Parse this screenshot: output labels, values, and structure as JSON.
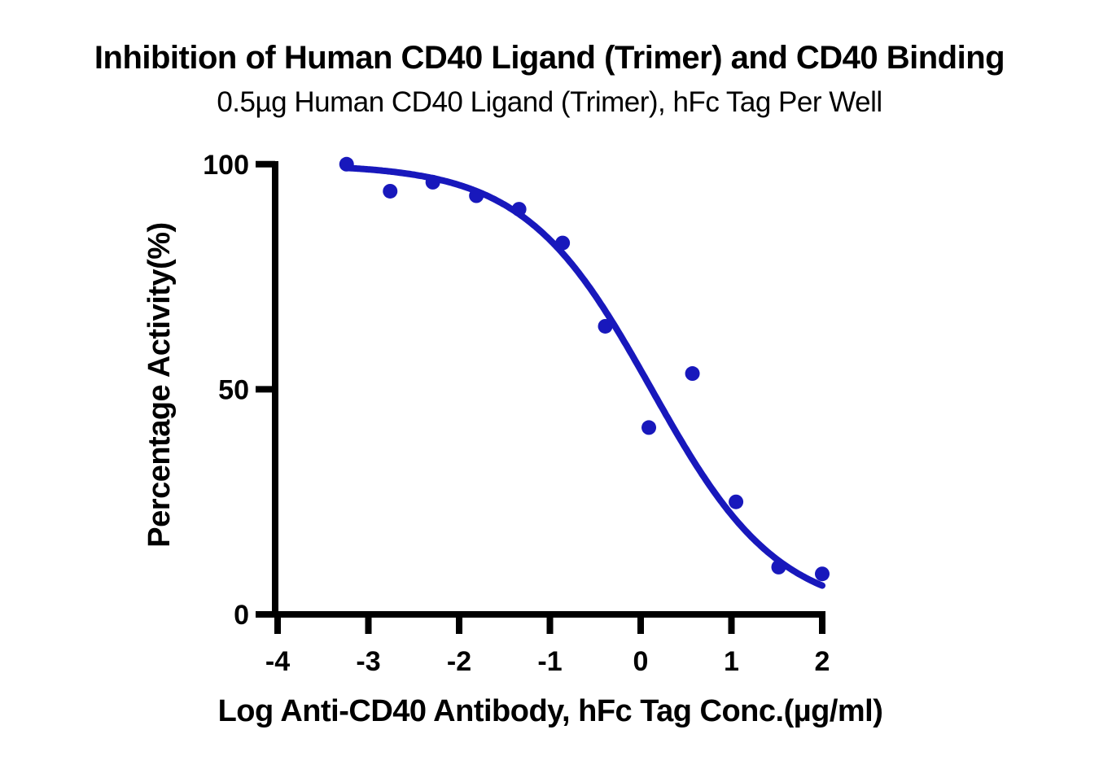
{
  "figure": {
    "title": "Inhibition of Human CD40 Ligand (Trimer) and CD40 Binding",
    "subtitle": "0.5µg Human CD40 Ligand (Trimer), hFc Tag Per Well"
  },
  "chart_data": {
    "type": "scatter",
    "title": "Inhibition of Human CD40 Ligand (Trimer) and CD40 Binding",
    "subtitle": "0.5µg Human CD40 Ligand (Trimer), hFc Tag Per Well",
    "xlabel": "Log Anti-CD40 Antibody, hFc Tag Conc.(µg/ml)",
    "ylabel": "Percentage Activity(%)",
    "xlim": [
      -4,
      2
    ],
    "ylim": [
      0,
      100
    ],
    "x_ticks": [
      -4,
      -3,
      -2,
      -1,
      0,
      1,
      2
    ],
    "y_ticks": [
      0,
      50,
      100
    ],
    "grid": false,
    "legend_position": "none",
    "marker_color": "#1818BC",
    "line_color": "#1818BC",
    "axis_color": "#000000",
    "series": [
      {
        "name": "Anti-CD40 Antibody",
        "x": [
          -3.24,
          -2.76,
          -2.29,
          -1.81,
          -1.34,
          -0.86,
          -0.39,
          0.09,
          0.57,
          1.05,
          1.52,
          2.0
        ],
        "y": [
          100,
          94,
          96,
          93,
          90,
          82.5,
          64,
          41.5,
          53.5,
          25,
          10.5,
          9
        ]
      }
    ],
    "fit_curve": {
      "model": "4PL-inhibition",
      "top": 100,
      "bottom": 0,
      "logIC50": 0.12,
      "hillslope": 0.62,
      "x_range": [
        -3.24,
        2.0
      ]
    }
  }
}
